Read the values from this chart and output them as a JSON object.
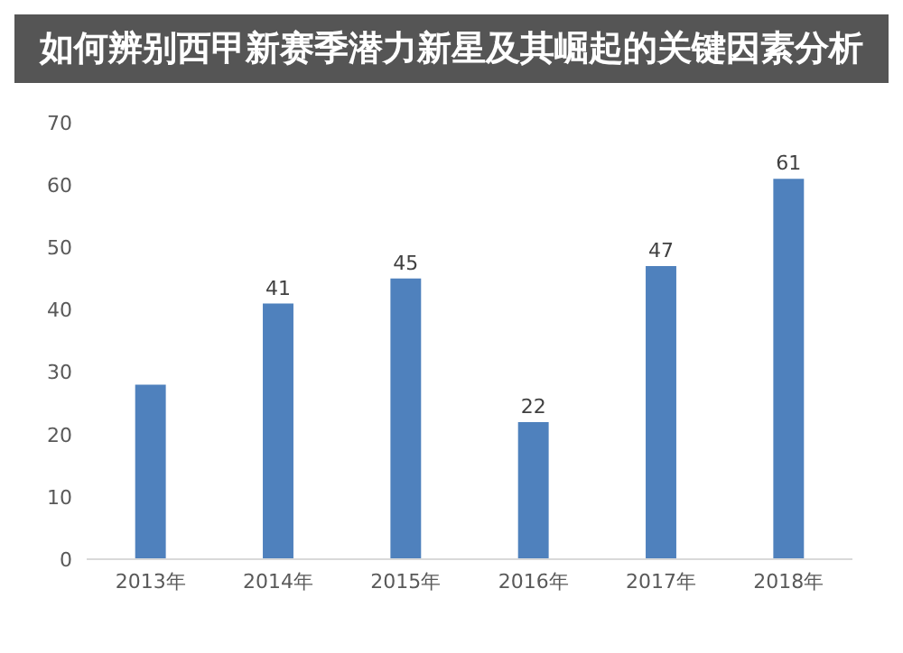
{
  "chart_data": {
    "type": "bar",
    "title": "如何辨别西甲新赛季潜力新星及其崛起的关键因素分析",
    "categories": [
      "2013年",
      "2014年",
      "2015年",
      "2016年",
      "2017年",
      "2018年"
    ],
    "values": [
      28,
      41,
      45,
      22,
      47,
      61
    ],
    "value_labels": [
      null,
      "41",
      "45",
      "22",
      "47",
      "61"
    ],
    "color": "#4f81bd",
    "ylim": [
      0,
      70
    ],
    "yticks": [
      0,
      10,
      20,
      30,
      40,
      50,
      60,
      70
    ],
    "grid": false
  }
}
